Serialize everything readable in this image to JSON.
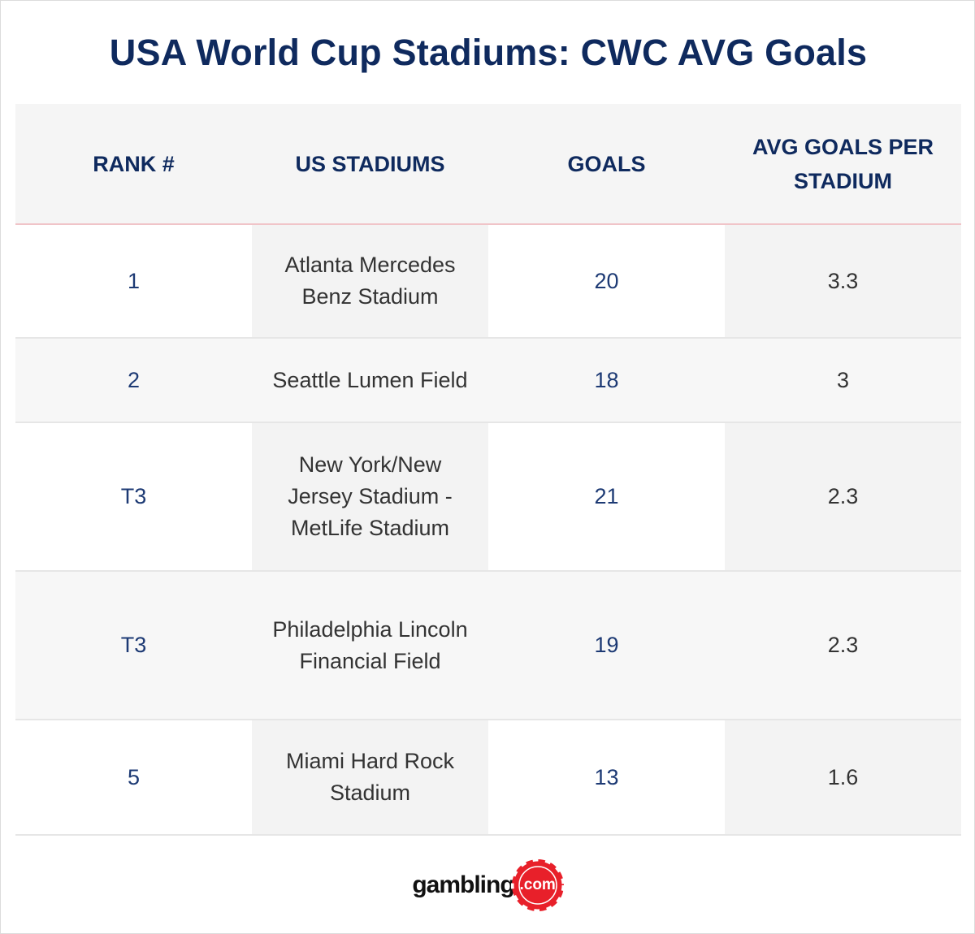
{
  "header": {
    "title": "USA World Cup Stadiums: CWC AVG Goals"
  },
  "table": {
    "columns": [
      "RANK #",
      "US STADIUMS",
      "GOALS",
      "AVG GOALS PER STADIUM"
    ],
    "rows": [
      [
        "1",
        "Atlanta Mercedes Benz Stadium",
        20,
        3.3
      ],
      [
        "2",
        "Seattle Lumen Field",
        18,
        3
      ],
      [
        "T3",
        "New York/New Jersey Stadium - MetLife Stadium",
        21,
        2.3
      ],
      [
        "T3",
        "Philadelphia Lincoln Financial Field",
        19,
        2.3
      ],
      [
        "5",
        "Miami Hard Rock Stadium",
        13,
        1.6
      ]
    ]
  },
  "footer": {
    "logo_text": "gambling",
    "logo_suffix": ".com"
  }
}
